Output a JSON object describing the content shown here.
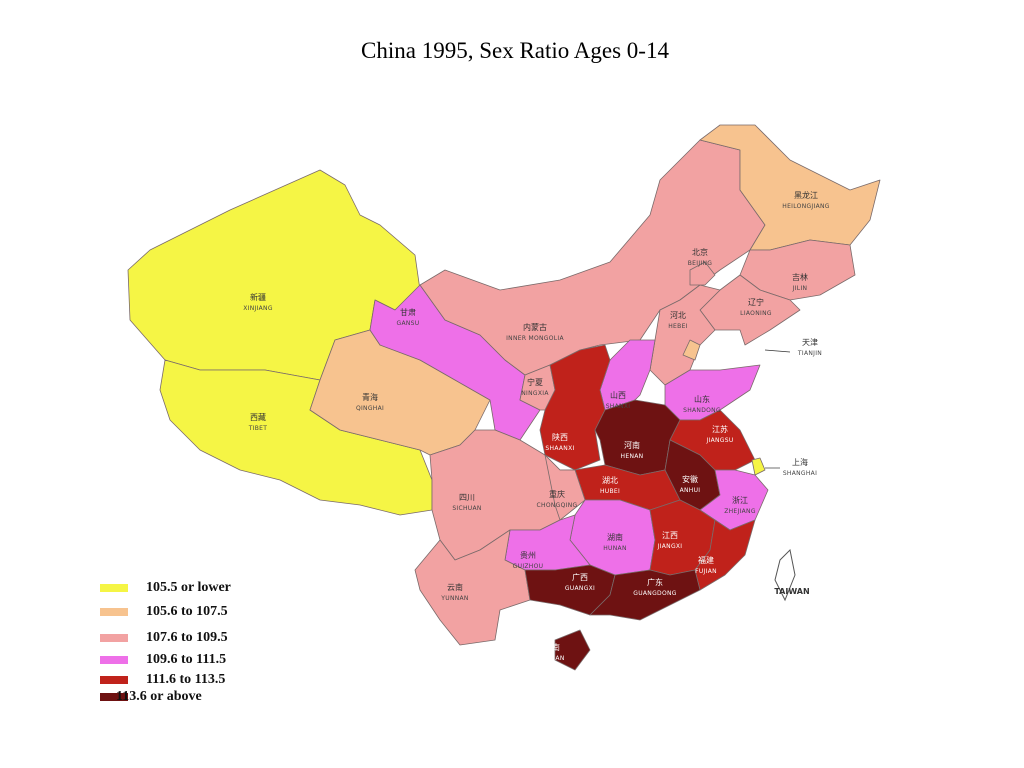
{
  "title": "China 1995, Sex Ratio Ages 0-14",
  "legend": [
    {
      "label": "105.5 or lower",
      "color": "#f5f545"
    },
    {
      "label": "105.6 to 107.5",
      "color": "#f7c38f"
    },
    {
      "label": "107.6 to 109.5",
      "color": "#f2a2a2"
    },
    {
      "label": "109.6 to 111.5",
      "color": "#ee70e8"
    },
    {
      "label": "111.6 to 113.5",
      "color": "#c0221b"
    },
    {
      "label": "113.6 or above",
      "color": "#6e1212"
    }
  ],
  "regions": [
    {
      "zh": "新疆",
      "en": "XINJIANG",
      "color": "#f5f545"
    },
    {
      "zh": "西藏",
      "en": "TIBET",
      "color": "#f5f545"
    },
    {
      "zh": "青海",
      "en": "QINGHAI",
      "color": "#f7c38f"
    },
    {
      "zh": "甘肃",
      "en": "GANSU",
      "color": "#ee70e8"
    },
    {
      "zh": "内蒙古",
      "en": "INNER MONGOLIA",
      "color": "#f2a2a2"
    },
    {
      "zh": "黑龙江",
      "en": "HEILONGJIANG",
      "color": "#f7c38f"
    },
    {
      "zh": "吉林",
      "en": "JILIN",
      "color": "#f2a2a2"
    },
    {
      "zh": "辽宁",
      "en": "LIAONING",
      "color": "#f2a2a2"
    },
    {
      "zh": "北京",
      "en": "BEIJING",
      "color": "#f2a2a2"
    },
    {
      "zh": "河北",
      "en": "HEBEI",
      "color": "#f2a2a2"
    },
    {
      "zh": "天津",
      "en": "TIANJIN",
      "color": "#f7c38f"
    },
    {
      "zh": "宁夏",
      "en": "NINGXIA",
      "color": "#f2a2a2"
    },
    {
      "zh": "山西",
      "en": "SHANXI",
      "color": "#ee70e8"
    },
    {
      "zh": "山东",
      "en": "SHANDONG",
      "color": "#ee70e8"
    },
    {
      "zh": "陕西",
      "en": "SHAANXI",
      "color": "#c0221b"
    },
    {
      "zh": "河南",
      "en": "HENAN",
      "color": "#6e1212"
    },
    {
      "zh": "江苏",
      "en": "JIANGSU",
      "color": "#c0221b"
    },
    {
      "zh": "安徽",
      "en": "ANHUI",
      "color": "#6e1212"
    },
    {
      "zh": "上海",
      "en": "SHANGHAI",
      "color": "#f5f545"
    },
    {
      "zh": "湖北",
      "en": "HUBEI",
      "color": "#c0221b"
    },
    {
      "zh": "四川",
      "en": "SICHUAN",
      "color": "#f2a2a2"
    },
    {
      "zh": "重庆",
      "en": "CHONGQING",
      "color": "#f2a2a2"
    },
    {
      "zh": "浙江",
      "en": "ZHEJIANG",
      "color": "#ee70e8"
    },
    {
      "zh": "湖南",
      "en": "HUNAN",
      "color": "#ee70e8"
    },
    {
      "zh": "江西",
      "en": "JIANGXI",
      "color": "#c0221b"
    },
    {
      "zh": "福建",
      "en": "FUJIAN",
      "color": "#c0221b"
    },
    {
      "zh": "贵州",
      "en": "GUIZHOU",
      "color": "#ee70e8"
    },
    {
      "zh": "云南",
      "en": "YUNNAN",
      "color": "#f2a2a2"
    },
    {
      "zh": "广西",
      "en": "GUANGXI",
      "color": "#6e1212"
    },
    {
      "zh": "广东",
      "en": "GUANGDONG",
      "color": "#6e1212"
    },
    {
      "zh": "海南",
      "en": "HAINAN",
      "color": "#6e1212"
    }
  ],
  "taiwan": "TAIWAN"
}
